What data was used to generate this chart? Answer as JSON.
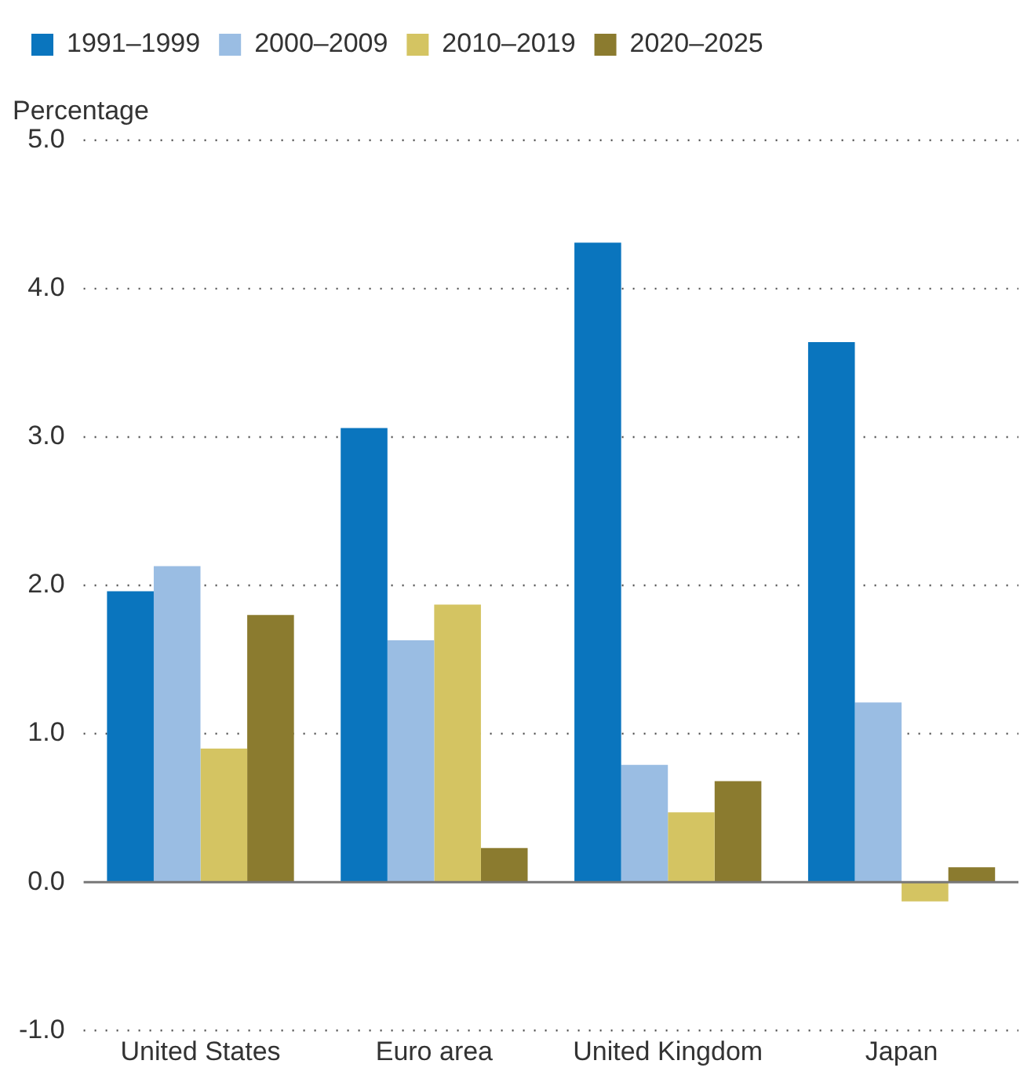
{
  "chart_data": {
    "type": "bar",
    "ylabel": "Percentage",
    "categories": [
      "United States",
      "Euro area",
      "United Kingdom",
      "Japan"
    ],
    "series": [
      {
        "name": "1991–1999",
        "color": "#0a75be",
        "values": [
          1.96,
          3.06,
          4.31,
          3.64
        ]
      },
      {
        "name": "2000–2009",
        "color": "#9abde3",
        "values": [
          2.13,
          1.63,
          0.79,
          1.21
        ]
      },
      {
        "name": "2010–2019",
        "color": "#d4c462",
        "values": [
          0.9,
          1.87,
          0.47,
          -0.13
        ]
      },
      {
        "name": "2020–2025",
        "color": "#8b7b2f",
        "values": [
          1.8,
          0.23,
          0.68,
          0.1
        ]
      }
    ],
    "ylim": [
      -1,
      5
    ],
    "yticks": [
      {
        "value": -1,
        "label": "-1.0"
      },
      {
        "value": 0,
        "label": "0.0"
      },
      {
        "value": 1,
        "label": "1.0"
      },
      {
        "value": 2,
        "label": "2.0"
      },
      {
        "value": 3,
        "label": "3.0"
      },
      {
        "value": 4,
        "label": "4.0"
      },
      {
        "value": 5,
        "label": "5.0"
      }
    ],
    "grid": "y",
    "legend": "top left"
  }
}
